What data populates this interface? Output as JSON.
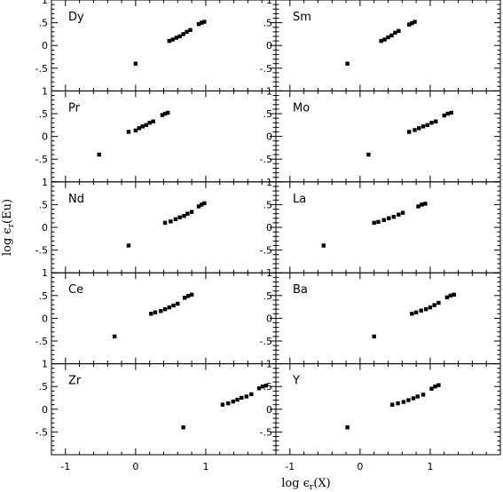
{
  "chart_data": {
    "type": "scatter",
    "xlabel": "log ϵ",
    "xlabel_sub": "r",
    "xlabel_arg": "(X)",
    "ylabel": "log ϵ",
    "ylabel_sub": "r",
    "ylabel_arg": "(Eu)",
    "xlim": [
      -1.2,
      2.0
    ],
    "ylim": [
      -1.0,
      1.0
    ],
    "xticks": [
      -1,
      0,
      1
    ],
    "yticks": [
      1,
      0.5,
      0,
      -0.5
    ],
    "layout": "5 rows x 2 columns, shared axes",
    "marker_color": "#000000",
    "panels": [
      {
        "label": "Dy",
        "points": [
          [
            0.0,
            -0.4
          ],
          [
            0.48,
            0.1
          ],
          [
            0.53,
            0.13
          ],
          [
            0.58,
            0.17
          ],
          [
            0.63,
            0.2
          ],
          [
            0.68,
            0.25
          ],
          [
            0.73,
            0.3
          ],
          [
            0.78,
            0.34
          ],
          [
            0.9,
            0.47
          ],
          [
            0.94,
            0.5
          ],
          [
            0.98,
            0.52
          ]
        ]
      },
      {
        "label": "Sm",
        "points": [
          [
            -0.18,
            -0.4
          ],
          [
            0.3,
            0.1
          ],
          [
            0.35,
            0.13
          ],
          [
            0.4,
            0.18
          ],
          [
            0.45,
            0.22
          ],
          [
            0.5,
            0.28
          ],
          [
            0.55,
            0.32
          ],
          [
            0.7,
            0.46
          ],
          [
            0.74,
            0.49
          ],
          [
            0.78,
            0.52
          ]
        ]
      },
      {
        "label": "Pr",
        "points": [
          [
            -0.52,
            -0.4
          ],
          [
            -0.1,
            0.1
          ],
          [
            0.0,
            0.13
          ],
          [
            0.05,
            0.18
          ],
          [
            0.1,
            0.22
          ],
          [
            0.15,
            0.25
          ],
          [
            0.2,
            0.3
          ],
          [
            0.25,
            0.33
          ],
          [
            0.38,
            0.47
          ],
          [
            0.42,
            0.5
          ],
          [
            0.46,
            0.52
          ]
        ]
      },
      {
        "label": "Mo",
        "points": [
          [
            0.12,
            -0.4
          ],
          [
            0.7,
            0.1
          ],
          [
            0.78,
            0.14
          ],
          [
            0.84,
            0.18
          ],
          [
            0.9,
            0.22
          ],
          [
            0.96,
            0.25
          ],
          [
            1.02,
            0.3
          ],
          [
            1.08,
            0.33
          ],
          [
            1.2,
            0.46
          ],
          [
            1.25,
            0.5
          ],
          [
            1.3,
            0.52
          ]
        ]
      },
      {
        "label": "Nd",
        "points": [
          [
            -0.1,
            -0.4
          ],
          [
            0.42,
            0.1
          ],
          [
            0.5,
            0.13
          ],
          [
            0.57,
            0.18
          ],
          [
            0.63,
            0.22
          ],
          [
            0.69,
            0.25
          ],
          [
            0.74,
            0.3
          ],
          [
            0.8,
            0.34
          ],
          [
            0.9,
            0.46
          ],
          [
            0.94,
            0.5
          ],
          [
            0.98,
            0.53
          ]
        ]
      },
      {
        "label": "La",
        "points": [
          [
            -0.52,
            -0.4
          ],
          [
            0.2,
            0.1
          ],
          [
            0.26,
            0.12
          ],
          [
            0.34,
            0.16
          ],
          [
            0.41,
            0.2
          ],
          [
            0.48,
            0.23
          ],
          [
            0.55,
            0.28
          ],
          [
            0.61,
            0.32
          ],
          [
            0.83,
            0.46
          ],
          [
            0.88,
            0.5
          ],
          [
            0.93,
            0.52
          ]
        ]
      },
      {
        "label": "Ce",
        "points": [
          [
            -0.3,
            -0.4
          ],
          [
            0.22,
            0.1
          ],
          [
            0.28,
            0.13
          ],
          [
            0.36,
            0.16
          ],
          [
            0.42,
            0.2
          ],
          [
            0.48,
            0.24
          ],
          [
            0.54,
            0.28
          ],
          [
            0.6,
            0.32
          ],
          [
            0.7,
            0.45
          ],
          [
            0.75,
            0.49
          ],
          [
            0.8,
            0.52
          ]
        ]
      },
      {
        "label": "Ba",
        "points": [
          [
            0.2,
            -0.4
          ],
          [
            0.74,
            0.1
          ],
          [
            0.8,
            0.13
          ],
          [
            0.87,
            0.17
          ],
          [
            0.94,
            0.2
          ],
          [
            1.0,
            0.24
          ],
          [
            1.06,
            0.29
          ],
          [
            1.12,
            0.34
          ],
          [
            1.24,
            0.46
          ],
          [
            1.29,
            0.5
          ],
          [
            1.34,
            0.52
          ]
        ]
      },
      {
        "label": "Zr",
        "points": [
          [
            0.68,
            -0.4
          ],
          [
            1.24,
            0.1
          ],
          [
            1.32,
            0.13
          ],
          [
            1.39,
            0.17
          ],
          [
            1.45,
            0.21
          ],
          [
            1.51,
            0.25
          ],
          [
            1.58,
            0.28
          ],
          [
            1.65,
            0.33
          ],
          [
            1.76,
            0.46
          ],
          [
            1.81,
            0.5
          ],
          [
            1.86,
            0.52
          ]
        ]
      },
      {
        "label": "Y",
        "points": [
          [
            -0.18,
            -0.4
          ],
          [
            0.46,
            0.1
          ],
          [
            0.54,
            0.13
          ],
          [
            0.62,
            0.16
          ],
          [
            0.69,
            0.2
          ],
          [
            0.76,
            0.24
          ],
          [
            0.82,
            0.28
          ],
          [
            0.9,
            0.32
          ],
          [
            1.02,
            0.45
          ],
          [
            1.07,
            0.5
          ],
          [
            1.12,
            0.53
          ]
        ]
      }
    ]
  }
}
